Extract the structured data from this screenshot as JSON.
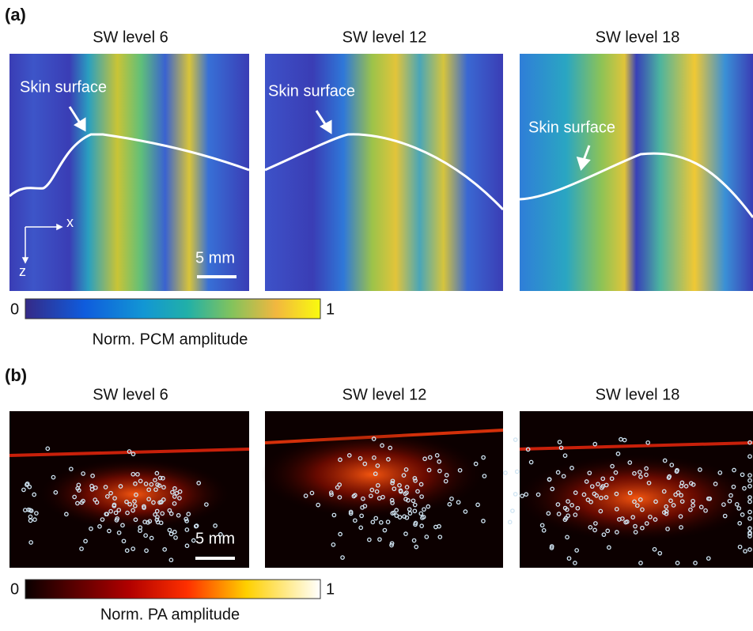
{
  "panels": [
    {
      "label": "(a)",
      "images": [
        {
          "title": "SW level 6",
          "annotation": "Skin surface"
        },
        {
          "title": "SW level 12",
          "annotation": "Skin surface"
        },
        {
          "title": "SW level 18",
          "annotation": "Skin surface"
        }
      ],
      "axis_x": "x",
      "axis_z": "z",
      "scale_bar": "5 mm",
      "colorbar": {
        "min": 0,
        "max": 1,
        "label": "Norm. PCM amplitude"
      }
    },
    {
      "label": "(b)",
      "images": [
        {
          "title": "SW level 6"
        },
        {
          "title": "SW level 12"
        },
        {
          "title": "SW level 18"
        }
      ],
      "scale_bar": "5 mm",
      "colorbar": {
        "min": 0,
        "max": 1,
        "label": "Norm. PA amplitude"
      }
    }
  ]
}
